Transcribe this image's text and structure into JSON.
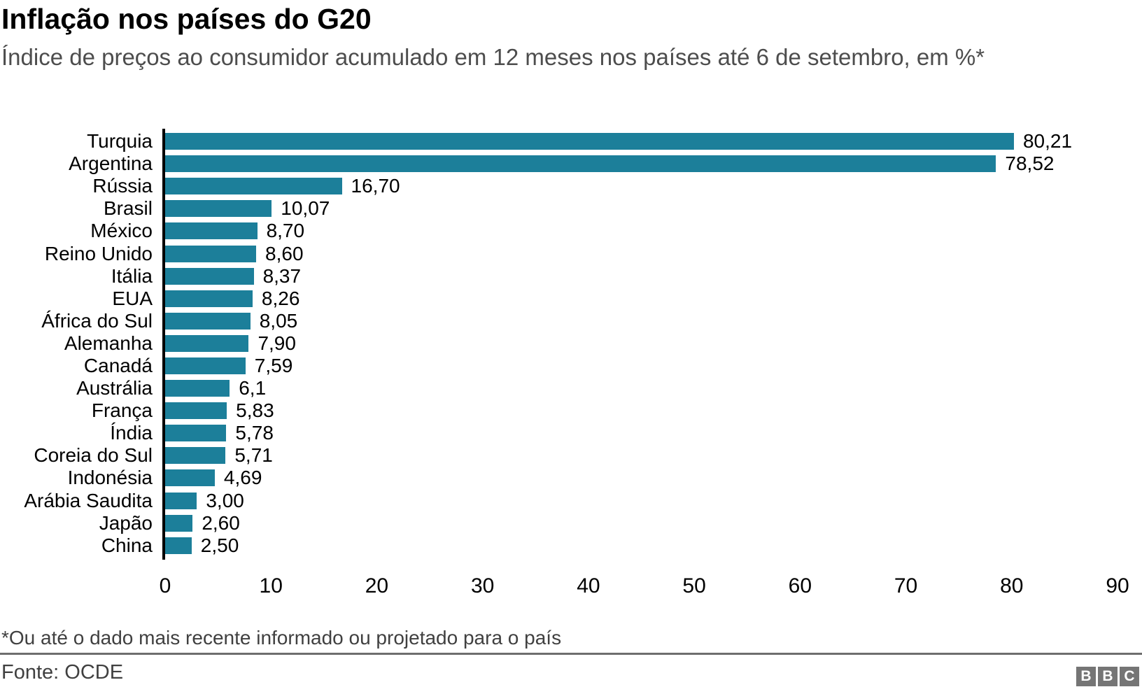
{
  "title": "Inflação nos países do G20",
  "subtitle": "Índice de preços ao consumidor acumulado em 12 meses nos países até 6 de setembro, em %*",
  "footnote": "*Ou até o dado mais recente informado ou projetado para o país",
  "source": "Fonte: OCDE",
  "logo_letters": [
    "B",
    "B",
    "C"
  ],
  "colors": {
    "bar": "#1c7f9a",
    "axis": "#000000",
    "subtitle_text": "#4d4d4d",
    "footnote_text": "#404040",
    "divider": "#6e6e6e",
    "logo_bg": "#757575"
  },
  "chart_data": {
    "type": "bar",
    "orientation": "horizontal",
    "title": "Inflação nos países do G20",
    "subtitle": "Índice de preços ao consumidor acumulado em 12 meses nos países até 6 de setembro, em %*",
    "categories": [
      "Turquia",
      "Argentina",
      "Rússia",
      "Brasil",
      "México",
      "Reino Unido",
      "Itália",
      "EUA",
      "África do Sul",
      "Alemanha",
      "Canadá",
      "Austrália",
      "França",
      "Índia",
      "Coreia do Sul",
      "Indonésia",
      "Arábia Saudita",
      "Japão",
      "China"
    ],
    "values": [
      80.21,
      78.52,
      16.7,
      10.07,
      8.7,
      8.6,
      8.37,
      8.26,
      8.05,
      7.9,
      7.59,
      6.1,
      5.83,
      5.78,
      5.71,
      4.69,
      3.0,
      2.6,
      2.5
    ],
    "value_labels": [
      "80,21",
      "78,52",
      "16,70",
      "10,07",
      "8,70",
      "8,60",
      "8,37",
      "8,26",
      "8,05",
      "7,90",
      "7,59",
      "6,1",
      "5,83",
      "5,78",
      "5,71",
      "4,69",
      "3,00",
      "2,60",
      "2,50"
    ],
    "xticks": [
      0,
      10,
      20,
      30,
      40,
      50,
      60,
      70,
      80,
      90
    ],
    "xlim": [
      0,
      90
    ],
    "xlabel": "",
    "ylabel": "",
    "grid": false,
    "legend": false
  }
}
